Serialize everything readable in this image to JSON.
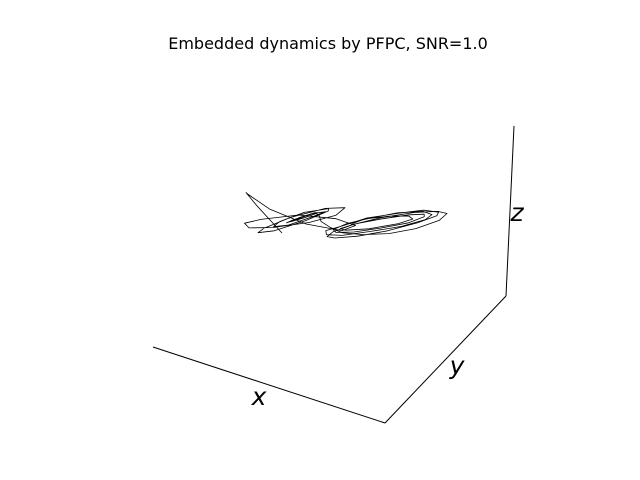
{
  "chart_data": {
    "type": "line",
    "title": "Embedded dynamics by PFPC, SNR=1.0",
    "xlabel": "x",
    "ylabel": "y",
    "zlabel": "z",
    "projection": "3d",
    "grid": false,
    "series": [
      {
        "color": "#000000",
        "description_points_note": "",
        "x": [
          -0.2,
          -0.45,
          -0.62,
          -0.7,
          -0.62,
          -0.4,
          -0.12,
          0.05,
          0.02,
          -0.15,
          -0.38,
          -0.55,
          -0.6,
          -0.52,
          -0.32,
          -0.12,
          0.0,
          -0.05,
          -0.22,
          -0.4,
          -0.5,
          -0.46,
          -0.3,
          -0.14,
          -0.08,
          -0.18,
          -0.32,
          -0.4,
          -0.36,
          -0.22,
          -0.12,
          -0.15,
          -0.26,
          -0.33,
          -0.3,
          -0.2,
          -0.14,
          -0.2,
          -0.3,
          -0.28,
          -0.18,
          -0.12,
          -0.06,
          0.08,
          0.22,
          0.38,
          0.52,
          0.62,
          0.68,
          0.64,
          0.52,
          0.34,
          0.16,
          0.06,
          0.02,
          0.06,
          0.16,
          0.32,
          0.48,
          0.6,
          0.64,
          0.58,
          0.44,
          0.28,
          0.12,
          0.04,
          0.02,
          0.08,
          0.2,
          0.36,
          0.5,
          0.58,
          0.56,
          0.46,
          0.3,
          0.16,
          0.08,
          0.06,
          0.12,
          0.24,
          0.38,
          0.5,
          0.54,
          0.5,
          0.4,
          0.26,
          0.14,
          0.1,
          0.16,
          0.3,
          0.44,
          0.48,
          0.42,
          0.3,
          0.18,
          0.14
        ],
        "y": [
          -0.3,
          -0.1,
          0.15,
          0.4,
          0.55,
          0.6,
          0.5,
          0.3,
          0.05,
          -0.15,
          -0.2,
          -0.05,
          0.15,
          0.35,
          0.45,
          0.4,
          0.25,
          0.05,
          -0.1,
          -0.1,
          0.05,
          0.22,
          0.34,
          0.32,
          0.18,
          0.02,
          -0.04,
          0.06,
          0.2,
          0.28,
          0.22,
          0.1,
          0.04,
          0.1,
          0.2,
          0.24,
          0.16,
          0.08,
          0.1,
          0.18,
          0.2,
          0.12,
          0.0,
          -0.2,
          -0.35,
          -0.4,
          -0.32,
          -0.12,
          0.12,
          0.35,
          0.5,
          0.55,
          0.45,
          0.25,
          0.0,
          -0.2,
          -0.32,
          -0.34,
          -0.24,
          -0.04,
          0.18,
          0.36,
          0.46,
          0.44,
          0.3,
          0.08,
          -0.12,
          -0.26,
          -0.3,
          -0.22,
          -0.06,
          0.14,
          0.3,
          0.4,
          0.38,
          0.26,
          0.08,
          -0.1,
          -0.2,
          -0.2,
          -0.1,
          0.06,
          0.22,
          0.32,
          0.32,
          0.22,
          0.06,
          -0.08,
          -0.14,
          -0.1,
          0.04,
          0.18,
          0.26,
          0.24,
          0.14,
          0.02
        ],
        "z": [
          0.55,
          0.62,
          0.58,
          0.45,
          0.3,
          0.2,
          0.22,
          0.35,
          0.5,
          0.6,
          0.58,
          0.48,
          0.36,
          0.28,
          0.28,
          0.36,
          0.48,
          0.56,
          0.56,
          0.48,
          0.38,
          0.32,
          0.34,
          0.42,
          0.5,
          0.54,
          0.5,
          0.42,
          0.37,
          0.4,
          0.46,
          0.5,
          0.48,
          0.43,
          0.41,
          0.44,
          0.48,
          0.48,
          0.44,
          0.43,
          0.46,
          0.48,
          0.5,
          0.56,
          0.6,
          0.62,
          0.6,
          0.55,
          0.5,
          0.44,
          0.38,
          0.34,
          0.34,
          0.38,
          0.44,
          0.5,
          0.55,
          0.58,
          0.58,
          0.55,
          0.5,
          0.44,
          0.4,
          0.38,
          0.4,
          0.44,
          0.5,
          0.54,
          0.56,
          0.56,
          0.53,
          0.49,
          0.45,
          0.42,
          0.41,
          0.42,
          0.46,
          0.5,
          0.53,
          0.54,
          0.53,
          0.5,
          0.47,
          0.44,
          0.43,
          0.44,
          0.47,
          0.5,
          0.52,
          0.52,
          0.5,
          0.47,
          0.45,
          0.45,
          0.47,
          0.49
        ]
      }
    ]
  }
}
